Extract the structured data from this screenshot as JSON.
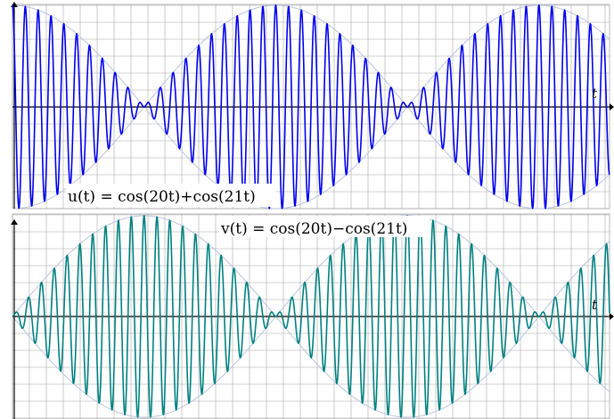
{
  "chart_data": [
    {
      "type": "line",
      "label": "u(t) = cos(20t)+cos(21t)",
      "x_axis_label": "t",
      "x_range_periods_of_envelope": [
        0,
        2.3
      ],
      "formula": {
        "a": 20,
        "b": 21,
        "op": "+"
      },
      "grid": true,
      "envelope_shown": true,
      "ylim": [
        -2,
        2
      ],
      "colors": {
        "curve": "#0000ee",
        "envelope": "#b8c4e0",
        "grid": "#a8a8a8",
        "axis": "#000000"
      }
    },
    {
      "type": "line",
      "label": "v(t) = cos(20t)−cos(21t)",
      "x_axis_label": "t",
      "x_range_periods_of_envelope": [
        0,
        2.3
      ],
      "formula": {
        "a": 20,
        "b": 21,
        "op": "-"
      },
      "grid": true,
      "envelope_shown": true,
      "ylim": [
        -2,
        2
      ],
      "colors": {
        "curve": "#008080",
        "envelope": "#b8c4e0",
        "grid": "#a8a8a8",
        "axis": "#000000"
      }
    }
  ]
}
